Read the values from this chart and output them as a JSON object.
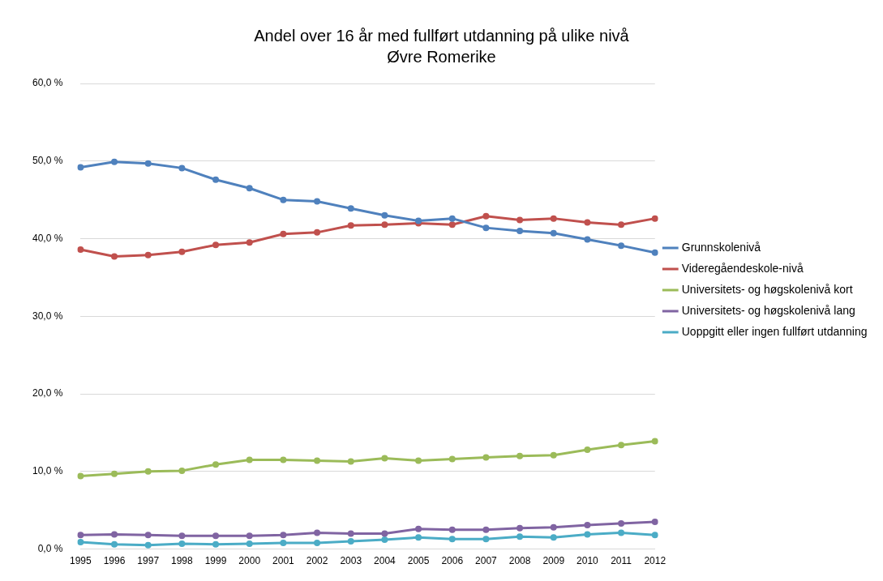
{
  "chart_data": {
    "type": "line",
    "title": "Andel over 16 år med fullført utdanning på ulike nivå",
    "subtitle": "Øvre Romerike",
    "categories": [
      "1995",
      "1996",
      "1997",
      "1998",
      "1999",
      "2000",
      "2001",
      "2002",
      "2003",
      "2004",
      "2005",
      "2006",
      "2007",
      "2008",
      "2009",
      "2010",
      "2011",
      "2012"
    ],
    "series": [
      {
        "name": "Grunnskolenivå",
        "color": "#4f81bd",
        "values": [
          49.2,
          49.9,
          49.7,
          49.1,
          47.6,
          46.5,
          45.0,
          44.8,
          43.9,
          43.0,
          42.3,
          42.6,
          41.4,
          41.0,
          40.7,
          39.9,
          39.1,
          38.2
        ]
      },
      {
        "name": "Videregåendeskole-nivå",
        "color": "#c0504d",
        "values": [
          38.6,
          37.7,
          37.9,
          38.3,
          39.2,
          39.5,
          40.6,
          40.8,
          41.7,
          41.8,
          42.0,
          41.8,
          42.9,
          42.4,
          42.6,
          42.1,
          41.8,
          42.6
        ]
      },
      {
        "name": "Universitets- og høgskolenivå kort",
        "color": "#9bbb59",
        "values": [
          9.4,
          9.7,
          10.0,
          10.1,
          10.9,
          11.5,
          11.5,
          11.4,
          11.3,
          11.7,
          11.4,
          11.6,
          11.8,
          12.0,
          12.1,
          12.8,
          13.4,
          13.9
        ]
      },
      {
        "name": "Universitets- og høgskolenivå lang",
        "color": "#8064a2",
        "values": [
          1.8,
          1.9,
          1.8,
          1.7,
          1.7,
          1.7,
          1.8,
          2.1,
          2.0,
          2.0,
          2.6,
          2.5,
          2.5,
          2.7,
          2.8,
          3.1,
          3.3,
          3.5
        ]
      },
      {
        "name": "Uoppgitt eller ingen fullført utdanning",
        "color": "#4bacc6",
        "values": [
          0.9,
          0.6,
          0.5,
          0.7,
          0.6,
          0.7,
          0.8,
          0.8,
          1.0,
          1.2,
          1.5,
          1.3,
          1.3,
          1.6,
          1.5,
          1.9,
          2.1,
          1.8
        ]
      }
    ],
    "ylim": [
      0,
      60
    ],
    "yticks": [
      {
        "value": 0,
        "label": "0,0 %"
      },
      {
        "value": 10,
        "label": "10,0 %"
      },
      {
        "value": 20,
        "label": "20,0 %"
      },
      {
        "value": 30,
        "label": "30,0 %"
      },
      {
        "value": 40,
        "label": "40,0 %"
      },
      {
        "value": 50,
        "label": "50,0 %"
      },
      {
        "value": 60,
        "label": "60,0 %"
      }
    ],
    "grid": "y",
    "legend": "right",
    "marker": "circle",
    "line_style": "solid"
  }
}
